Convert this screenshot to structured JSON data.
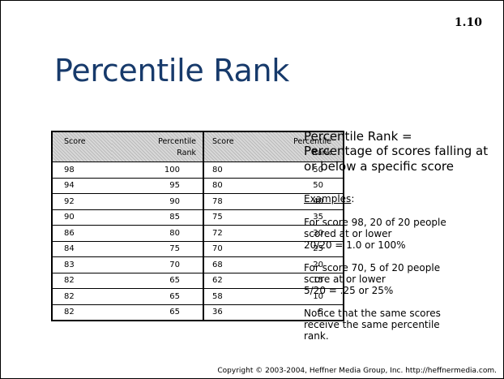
{
  "slide_number": "1.10",
  "title": "Percentile Rank",
  "table": {
    "headers": [
      {
        "line1": "Score",
        "line2": ""
      },
      {
        "line1": "Percentile",
        "line2": "Rank"
      },
      {
        "line1": "Score",
        "line2": ""
      },
      {
        "line1": "Percentile",
        "line2": "Rank"
      }
    ],
    "rows": [
      [
        "98",
        "100",
        "80",
        "50"
      ],
      [
        "94",
        "95",
        "80",
        "50"
      ],
      [
        "92",
        "90",
        "78",
        "40"
      ],
      [
        "90",
        "85",
        "75",
        "35"
      ],
      [
        "86",
        "80",
        "72",
        "30"
      ],
      [
        "84",
        "75",
        "70",
        "25"
      ],
      [
        "83",
        "70",
        "68",
        "20"
      ],
      [
        "82",
        "65",
        "62",
        "15"
      ],
      [
        "82",
        "65",
        "58",
        "10"
      ],
      [
        "82",
        "65",
        "36",
        "5"
      ]
    ]
  },
  "definition": {
    "heading": "Percentile Rank =",
    "text": "Percentage of scores falling at or below a specific score"
  },
  "examples_label": "Examples",
  "examples_colon": ":",
  "example1": "For score 98, 20 of 20 people\nscored at or lower\n20/20 = 1.0 or 100%",
  "example2": "For score 70, 5 of 20 people\nscore at or lower\n5/20 = .25 or 25%",
  "note": "Notice that the same scores\nreceive the same percentile\nrank.",
  "footer": "Copyright © 2003-2004, Heffner Media Group, Inc.  http://heffnermedia.com."
}
